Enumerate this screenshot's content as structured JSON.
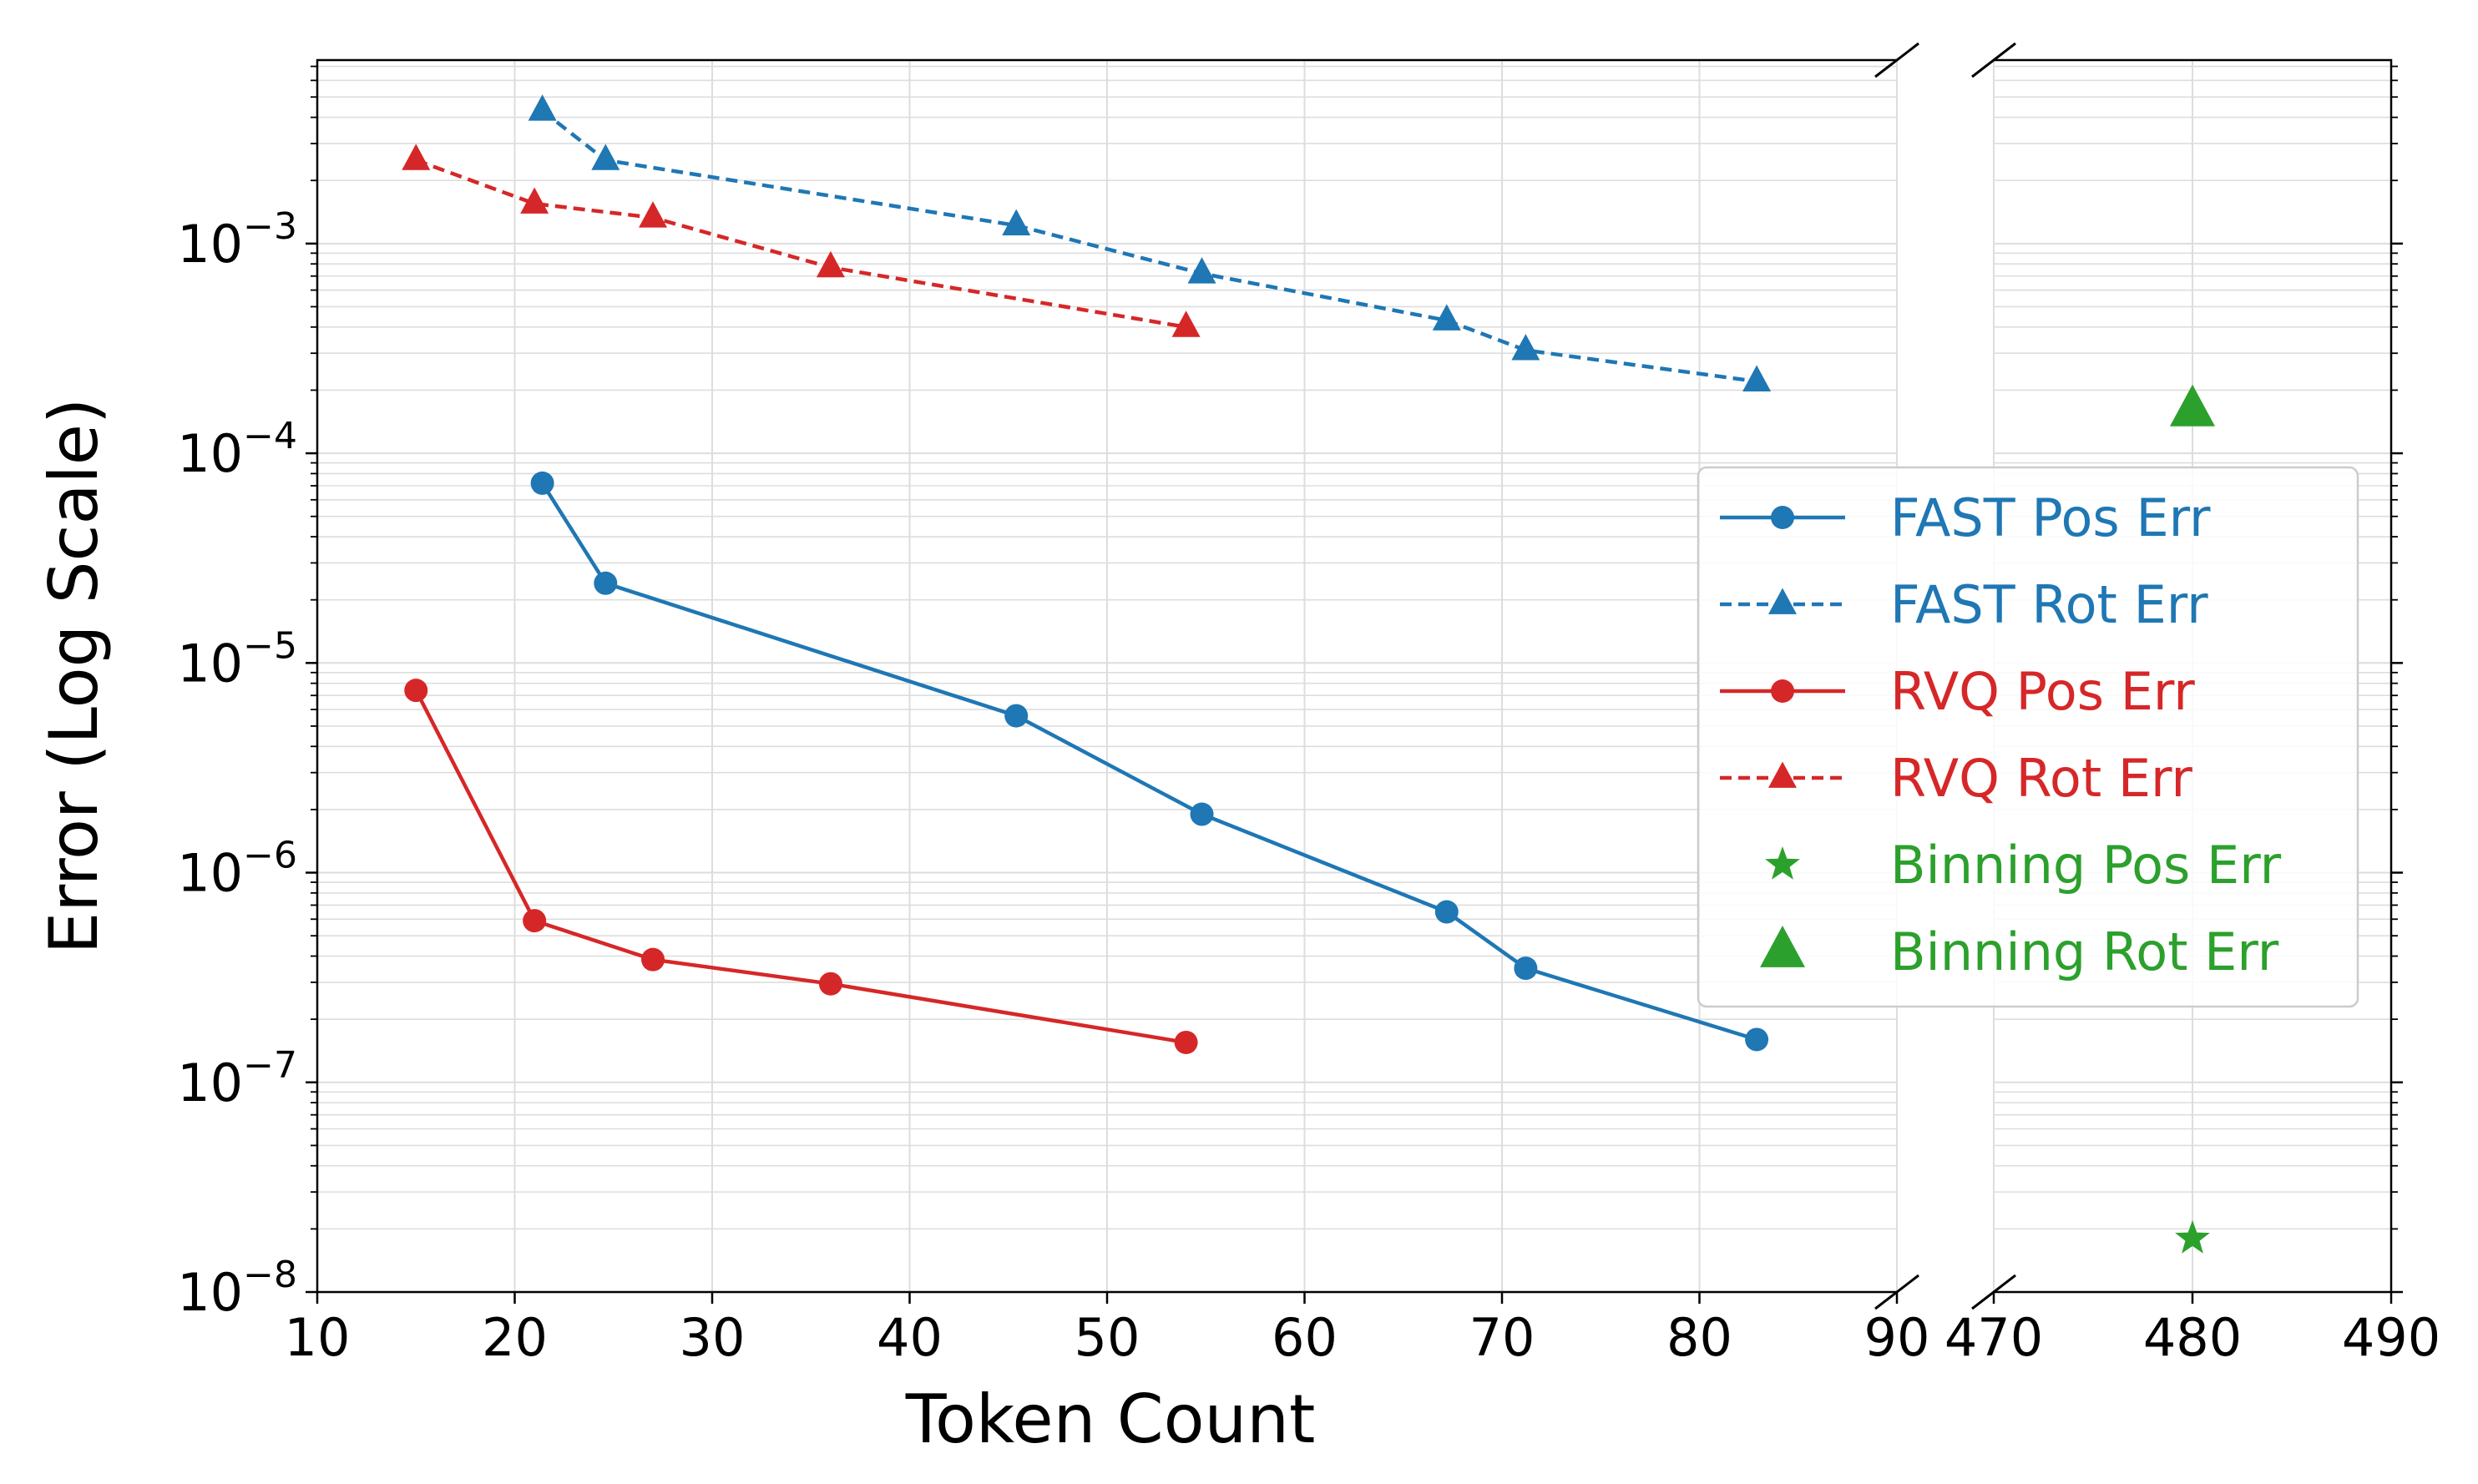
{
  "chart_data": {
    "type": "line",
    "xlabel": "Token Count",
    "ylabel": "Error (Log Scale)",
    "y_scale": "log",
    "ylim": [
      1e-08,
      0.0075
    ],
    "grid": true,
    "legend_placement": "center-right",
    "broken_x_axis": true,
    "x_segments": [
      {
        "range": [
          10,
          90
        ],
        "ticks": [
          "10",
          "20",
          "30",
          "40",
          "50",
          "60",
          "70",
          "80",
          "90"
        ]
      },
      {
        "range": [
          470,
          490
        ],
        "ticks": [
          "470",
          "480",
          "490"
        ]
      }
    ],
    "y_ticks": [
      {
        "value": 1e-08,
        "base": "10",
        "exp": "−8"
      },
      {
        "value": 1e-07,
        "base": "10",
        "exp": "−7"
      },
      {
        "value": 1e-06,
        "base": "10",
        "exp": "−6"
      },
      {
        "value": 1e-05,
        "base": "10",
        "exp": "−5"
      },
      {
        "value": 0.0001,
        "base": "10",
        "exp": "−4"
      },
      {
        "value": 0.001,
        "base": "10",
        "exp": "−3"
      }
    ],
    "series": [
      {
        "name": "FAST Pos Err",
        "color": "#1f77b4",
        "line": "solid",
        "marker": "circle",
        "x": [
          21.4,
          24.6,
          45.4,
          54.8,
          67.2,
          71.2,
          82.9
        ],
        "y": [
          7.2e-05,
          2.4e-05,
          5.6e-06,
          1.9e-06,
          6.5e-07,
          3.5e-07,
          1.6e-07
        ]
      },
      {
        "name": "FAST Rot Err",
        "color": "#1f77b4",
        "line": "dashed",
        "marker": "triangle",
        "x": [
          21.4,
          24.6,
          45.4,
          54.8,
          67.2,
          71.2,
          82.9
        ],
        "y": [
          0.0043,
          0.0025,
          0.00122,
          0.00072,
          0.00043,
          0.00031,
          0.00022
        ]
      },
      {
        "name": "RVQ Pos Err",
        "color": "#d62728",
        "line": "solid",
        "marker": "circle",
        "x": [
          15,
          21,
          27,
          36,
          54
        ],
        "y": [
          7.4e-06,
          5.9e-07,
          3.85e-07,
          2.95e-07,
          1.55e-07
        ]
      },
      {
        "name": "RVQ Rot Err",
        "color": "#d62728",
        "line": "dashed",
        "marker": "triangle",
        "x": [
          15,
          21,
          27,
          36,
          54
        ],
        "y": [
          0.0025,
          0.00155,
          0.00133,
          0.00077,
          0.0004
        ]
      },
      {
        "name": "Binning Pos Err",
        "color": "#2ca02c",
        "line": "none",
        "marker": "star",
        "x": [
          480
        ],
        "y": [
          1.8e-08
        ]
      },
      {
        "name": "Binning Rot Err",
        "color": "#2ca02c",
        "line": "none",
        "marker": "big-triangle",
        "x": [
          480
        ],
        "y": [
          0.00016
        ]
      }
    ]
  }
}
